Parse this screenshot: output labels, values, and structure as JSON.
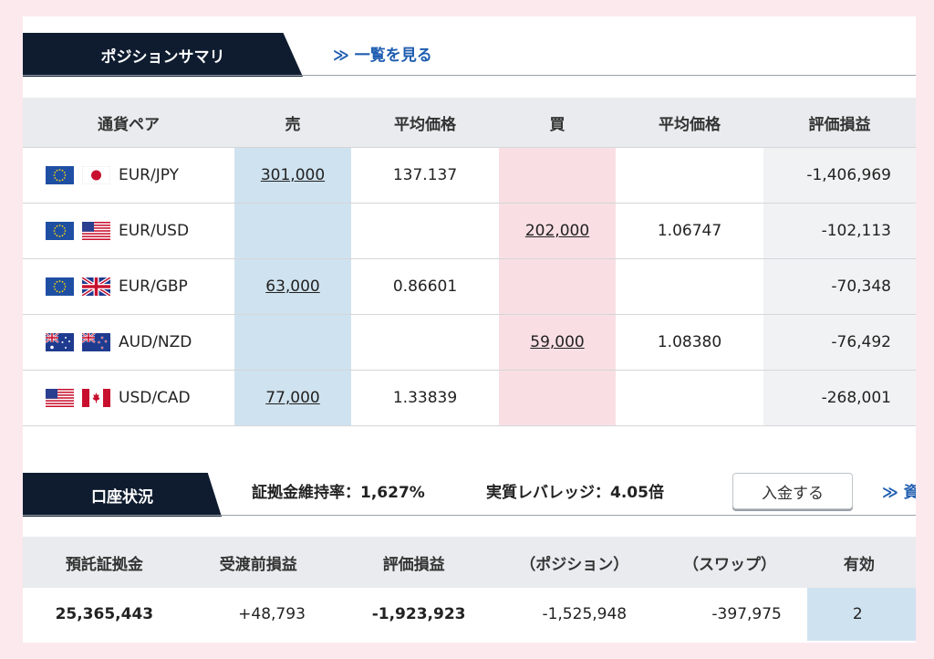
{
  "position_summary": {
    "title": "ポジションサマリ",
    "view_all_link": "≫ 一覧を見る",
    "headers": [
      "通貨ペア",
      "売",
      "平均価格",
      "買",
      "平均価格",
      "評価損益"
    ],
    "rows": [
      {
        "flags": [
          "eu-flag-icon",
          "jp-flag-icon"
        ],
        "pair": "EUR/JPY",
        "sell": "301,000",
        "sell_avg": "137.137",
        "buy": "",
        "buy_avg": "",
        "pl": "-1,406,969"
      },
      {
        "flags": [
          "eu-flag-icon",
          "us-flag-icon"
        ],
        "pair": "EUR/USD",
        "sell": "",
        "sell_avg": "",
        "buy": "202,000",
        "buy_avg": "1.06747",
        "pl": "-102,113"
      },
      {
        "flags": [
          "eu-flag-icon",
          "uk-flag-icon"
        ],
        "pair": "EUR/GBP",
        "sell": "63,000",
        "sell_avg": "0.86601",
        "buy": "",
        "buy_avg": "",
        "pl": "-70,348"
      },
      {
        "flags": [
          "au-flag-icon",
          "nz-flag-icon"
        ],
        "pair": "AUD/NZD",
        "sell": "",
        "sell_avg": "",
        "buy": "59,000",
        "buy_avg": "1.08380",
        "pl": "-76,492"
      },
      {
        "flags": [
          "us-flag-icon",
          "ca-flag-icon"
        ],
        "pair": "USD/CAD",
        "sell": "77,000",
        "sell_avg": "1.33839",
        "buy": "",
        "buy_avg": "",
        "pl": "-268,001"
      }
    ]
  },
  "account_status": {
    "title": "口座状況",
    "margin_ratio": "証拠金維持率：1,627%",
    "leverage": "実質レバレッジ：4.05倍",
    "deposit_button": "入金する",
    "more_link": "≫ 資",
    "headers": [
      "預託証拠金",
      "受渡前損益",
      "評価損益",
      "（ポジション）",
      "（スワップ）",
      "有効"
    ],
    "values": [
      "25,365,443",
      "+48,793",
      "-1,923,923",
      "-1,525,948",
      "-397,975",
      "2"
    ]
  },
  "colors": {
    "navy": "#0f1c30",
    "link_blue": "#1f5db0",
    "sell_col": "#cfe2ef",
    "buy_col": "#f9dfe3",
    "background_pink": "#fce9ee"
  }
}
